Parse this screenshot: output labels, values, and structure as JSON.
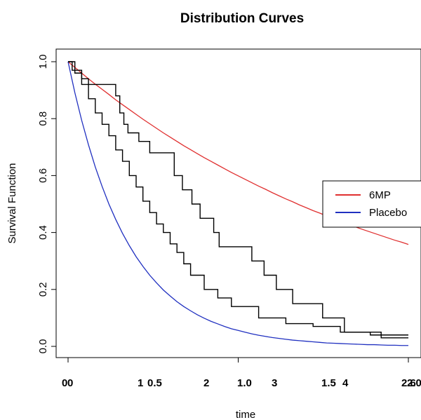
{
  "chart_data": {
    "type": "line",
    "title": "Distribution Curves",
    "xlabel": "time",
    "ylabel": "Survival Function",
    "ylim": [
      0,
      1
    ],
    "y_ticks": [
      "0.0",
      "0.2",
      "0.4",
      "0.6",
      "0.8",
      "1.0"
    ],
    "x_tick_labels": [
      "0",
      "0",
      "1",
      "0.5",
      "2",
      "1.0",
      "3",
      "1.5",
      "4",
      "2.6",
      "2.0"
    ],
    "legend": {
      "position": "right",
      "entries": [
        {
          "label": "6MP",
          "color": "#e03030"
        },
        {
          "label": "Placebo",
          "color": "#2030c0"
        }
      ]
    },
    "series": [
      {
        "name": "6MP",
        "kind": "fitted-curve",
        "color": "#e03030",
        "x": [
          0,
          0.5,
          1,
          1.5,
          2,
          2.5,
          3,
          3.5,
          4,
          4.5,
          5,
          5.5,
          6,
          6.5,
          7,
          7.5,
          8,
          8.5,
          9,
          9.5,
          10,
          10.5,
          11,
          11.5,
          12,
          12.5,
          13,
          13.5,
          14,
          14.5,
          15,
          15.5,
          16,
          16.5,
          17,
          17.5,
          18,
          18.5,
          19,
          19.5,
          20,
          20.5,
          21,
          21.5,
          22,
          22.5,
          23,
          23.5,
          24,
          24.5,
          25
        ],
        "y": [
          1.0,
          0.98,
          0.96,
          0.94,
          0.921,
          0.903,
          0.885,
          0.866,
          0.849,
          0.832,
          0.815,
          0.798,
          0.782,
          0.766,
          0.75,
          0.735,
          0.72,
          0.705,
          0.691,
          0.677,
          0.663,
          0.65,
          0.637,
          0.624,
          0.611,
          0.599,
          0.587,
          0.575,
          0.563,
          0.552,
          0.54,
          0.529,
          0.518,
          0.508,
          0.497,
          0.487,
          0.477,
          0.468,
          0.458,
          0.449,
          0.44,
          0.431,
          0.422,
          0.413,
          0.405,
          0.397,
          0.389,
          0.381,
          0.373,
          0.366,
          0.358
        ]
      },
      {
        "name": "Placebo",
        "kind": "fitted-curve",
        "color": "#2030c0",
        "x": [
          0,
          0.5,
          1,
          1.5,
          2,
          2.5,
          3,
          3.5,
          4,
          4.5,
          5,
          5.5,
          6,
          6.5,
          7,
          7.5,
          8,
          8.5,
          9,
          9.5,
          10,
          10.5,
          11,
          11.5,
          12,
          12.5,
          13,
          13.5,
          14,
          14.5,
          15,
          15.5,
          16,
          16.5,
          17,
          17.5,
          18,
          18.5,
          19,
          19.5,
          20,
          20.5,
          21,
          21.5,
          22,
          22.5,
          23,
          23.5,
          24,
          24.5,
          25
        ],
        "y": [
          1.0,
          0.891,
          0.794,
          0.708,
          0.63,
          0.562,
          0.5,
          0.446,
          0.397,
          0.354,
          0.315,
          0.281,
          0.25,
          0.223,
          0.198,
          0.177,
          0.157,
          0.14,
          0.125,
          0.111,
          0.099,
          0.088,
          0.079,
          0.07,
          0.062,
          0.056,
          0.05,
          0.044,
          0.039,
          0.035,
          0.031,
          0.028,
          0.025,
          0.022,
          0.02,
          0.018,
          0.016,
          0.014,
          0.012,
          0.011,
          0.01,
          0.009,
          0.008,
          0.007,
          0.006,
          0.006,
          0.005,
          0.004,
          0.004,
          0.003,
          0.003
        ]
      },
      {
        "name": "",
        "kind": "step",
        "color": "#000000",
        "x": [
          0,
          0.3,
          1,
          1.5,
          3.5,
          3.8,
          4.1,
          4.4,
          5.2,
          6.0,
          7.8,
          8.4,
          9.1,
          9.7,
          10.7,
          11.1,
          13.5,
          14.4,
          15.3,
          16.5,
          18.7,
          20.3,
          22.2,
          24.1,
          25
        ],
        "y": [
          1.0,
          0.97,
          0.94,
          0.92,
          0.88,
          0.82,
          0.78,
          0.75,
          0.72,
          0.68,
          0.6,
          0.55,
          0.5,
          0.45,
          0.4,
          0.35,
          0.3,
          0.25,
          0.2,
          0.15,
          0.1,
          0.05,
          0.04,
          0.04,
          0.04
        ]
      },
      {
        "name": "",
        "kind": "step",
        "color": "#000000",
        "x": [
          0,
          0.5,
          1,
          1.5,
          2,
          2.5,
          3,
          3.5,
          4,
          4.5,
          5,
          5.5,
          6,
          6.5,
          7,
          7.5,
          8,
          8.5,
          9,
          10,
          11,
          12,
          14,
          16,
          18,
          20,
          23,
          25
        ],
        "y": [
          1.0,
          0.96,
          0.92,
          0.87,
          0.82,
          0.78,
          0.74,
          0.69,
          0.65,
          0.6,
          0.56,
          0.51,
          0.47,
          0.43,
          0.4,
          0.36,
          0.33,
          0.29,
          0.25,
          0.2,
          0.17,
          0.14,
          0.1,
          0.08,
          0.07,
          0.05,
          0.03,
          0.03
        ]
      }
    ]
  }
}
